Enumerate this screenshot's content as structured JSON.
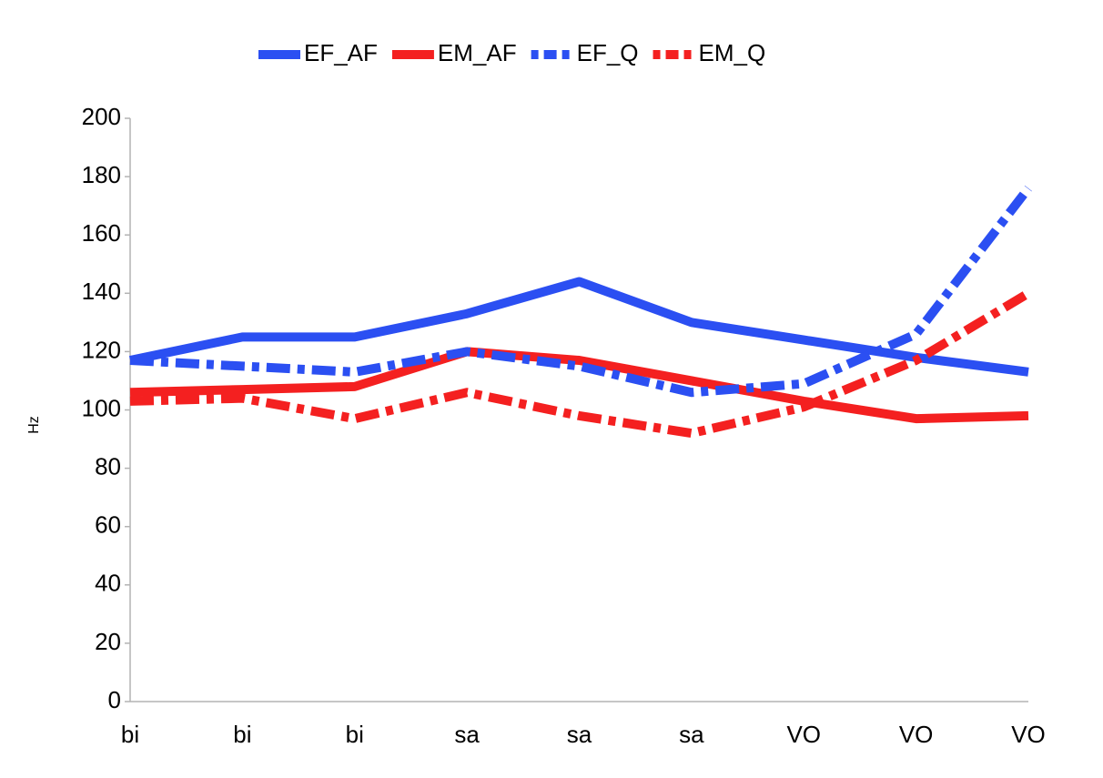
{
  "chart_data": {
    "type": "line",
    "y_label": "Hz",
    "categories": [
      "bi",
      "bi",
      "bi",
      "sa",
      "sa",
      "sa",
      "VO",
      "VO",
      "VO"
    ],
    "series": [
      {
        "name": "EF_AF",
        "color": "#2b4ff2",
        "line_style": "solid",
        "values": [
          117,
          125,
          125,
          133,
          144,
          130,
          124,
          118,
          113
        ]
      },
      {
        "name": "EM_AF",
        "color": "#f42020",
        "line_style": "solid",
        "values": [
          106,
          107,
          108,
          120,
          117,
          110,
          103,
          97,
          98
        ]
      },
      {
        "name": "EF_Q",
        "color": "#2b4ff2",
        "line_style": "dashdot",
        "values": [
          117,
          115,
          113,
          120,
          115,
          106,
          109,
          126,
          176
        ]
      },
      {
        "name": "EM_Q",
        "color": "#f42020",
        "line_style": "dashdot",
        "values": [
          103,
          104,
          97,
          106,
          98,
          92,
          101,
          117,
          140
        ]
      }
    ],
    "ylim": [
      0,
      200
    ],
    "yticks": [
      0,
      20,
      40,
      60,
      80,
      100,
      120,
      140,
      160,
      180,
      200
    ],
    "grid": false,
    "legend": "top"
  }
}
